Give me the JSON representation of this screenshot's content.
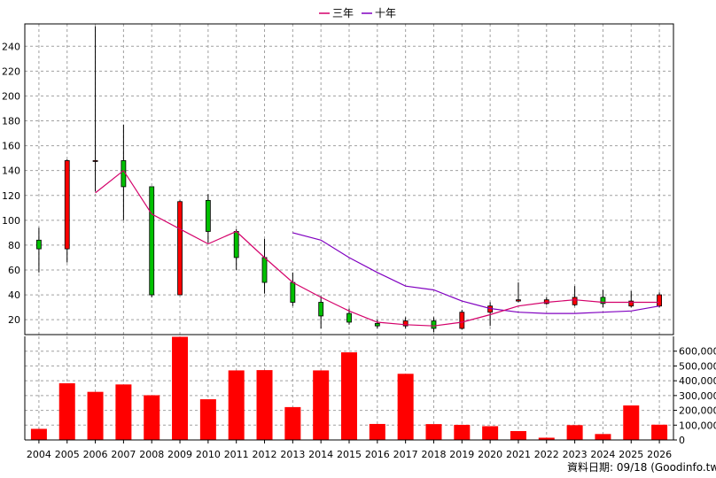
{
  "legend": {
    "ma3_label": "三年",
    "ma10_label": "十年",
    "ma3_color": "#d4006a",
    "ma10_color": "#8000c0"
  },
  "colors": {
    "up": "#ff0000",
    "down": "#00c000",
    "volume": "#ff0000",
    "grid": "#a0a0a0"
  },
  "footer_text": "資料日期: 09/18 (Goodinfo.tw)",
  "chart_data": [
    {
      "type": "candlestick",
      "title": "",
      "ylim": [
        8,
        258
      ],
      "y_ticks": [
        20,
        40,
        60,
        80,
        100,
        120,
        140,
        160,
        180,
        200,
        220,
        240
      ],
      "categories": [
        "2004",
        "2005",
        "2006",
        "2007",
        "2008",
        "2009",
        "2010",
        "2011",
        "2012",
        "2013",
        "2014",
        "2015",
        "2016",
        "2017",
        "2018",
        "2019",
        "2020",
        "2021",
        "2022",
        "2023",
        "2024",
        "2025",
        "2026"
      ],
      "ohlc": [
        {
          "open": 84,
          "high": 94,
          "low": 58,
          "close": 77
        },
        {
          "open": 77,
          "high": 149,
          "low": 66,
          "close": 148
        },
        {
          "open": 148,
          "high": 256,
          "low": 123,
          "close": 148
        },
        {
          "open": 148,
          "high": 177,
          "low": 100,
          "close": 127
        },
        {
          "open": 127,
          "high": 127,
          "low": 38,
          "close": 40
        },
        {
          "open": 40,
          "high": 116,
          "low": 40,
          "close": 115
        },
        {
          "open": 116,
          "high": 121,
          "low": 82,
          "close": 91
        },
        {
          "open": 91,
          "high": 93,
          "low": 60,
          "close": 70
        },
        {
          "open": 70,
          "high": 85,
          "low": 41,
          "close": 50
        },
        {
          "open": 50,
          "high": 58,
          "low": 31,
          "close": 34
        },
        {
          "open": 34,
          "high": 39,
          "low": 13,
          "close": 23
        },
        {
          "open": 25,
          "high": 29,
          "low": 16,
          "close": 18
        },
        {
          "open": 17,
          "high": 20,
          "low": 13,
          "close": 15
        },
        {
          "open": 15,
          "high": 22,
          "low": 13,
          "close": 19
        },
        {
          "open": 19,
          "high": 22,
          "low": 10,
          "close": 13
        },
        {
          "open": 13,
          "high": 28,
          "low": 12,
          "close": 26
        },
        {
          "open": 26,
          "high": 34,
          "low": 15,
          "close": 31
        },
        {
          "open": 35,
          "high": 50,
          "low": 34,
          "close": 36
        },
        {
          "open": 33,
          "high": 38,
          "low": 32,
          "close": 36
        },
        {
          "open": 32,
          "high": 47,
          "low": 31,
          "close": 38
        },
        {
          "open": 38,
          "high": 44,
          "low": 30,
          "close": 33
        },
        {
          "open": 31,
          "high": 43,
          "low": 30,
          "close": 35
        },
        {
          "open": 31,
          "high": 42,
          "low": 30,
          "close": 40
        }
      ],
      "series": [
        {
          "name": "三年",
          "values": [
            null,
            null,
            122,
            140,
            105,
            93,
            81,
            91,
            70,
            50,
            38,
            27,
            18,
            16,
            15,
            18,
            24,
            31,
            34,
            36,
            34,
            34,
            34
          ]
        },
        {
          "name": "十年",
          "values": [
            null,
            null,
            null,
            null,
            null,
            null,
            null,
            null,
            null,
            90,
            84,
            70,
            58,
            47,
            44,
            35,
            29,
            26,
            25,
            25,
            26,
            27,
            31
          ]
        }
      ]
    },
    {
      "type": "bar",
      "title": "",
      "ylim": [
        0,
        700000
      ],
      "y_ticks": [
        0,
        100000,
        200000,
        300000,
        400000,
        500000,
        600000
      ],
      "y_tick_labels": [
        "0",
        "100,000",
        "200,000",
        "300,000",
        "400,000",
        "500,000",
        "600,000"
      ],
      "categories": [
        "2004",
        "2005",
        "2006",
        "2007",
        "2008",
        "2009",
        "2010",
        "2011",
        "2012",
        "2013",
        "2014",
        "2015",
        "2016",
        "2017",
        "2018",
        "2019",
        "2020",
        "2021",
        "2022",
        "2023",
        "2024",
        "2025",
        "2026"
      ],
      "values": [
        75000,
        383000,
        325000,
        375000,
        302000,
        697000,
        275000,
        470000,
        472000,
        222000,
        470000,
        592000,
        108000,
        447000,
        107000,
        102000,
        93000,
        60000,
        15000,
        100000,
        40000,
        233000,
        103000
      ]
    }
  ]
}
